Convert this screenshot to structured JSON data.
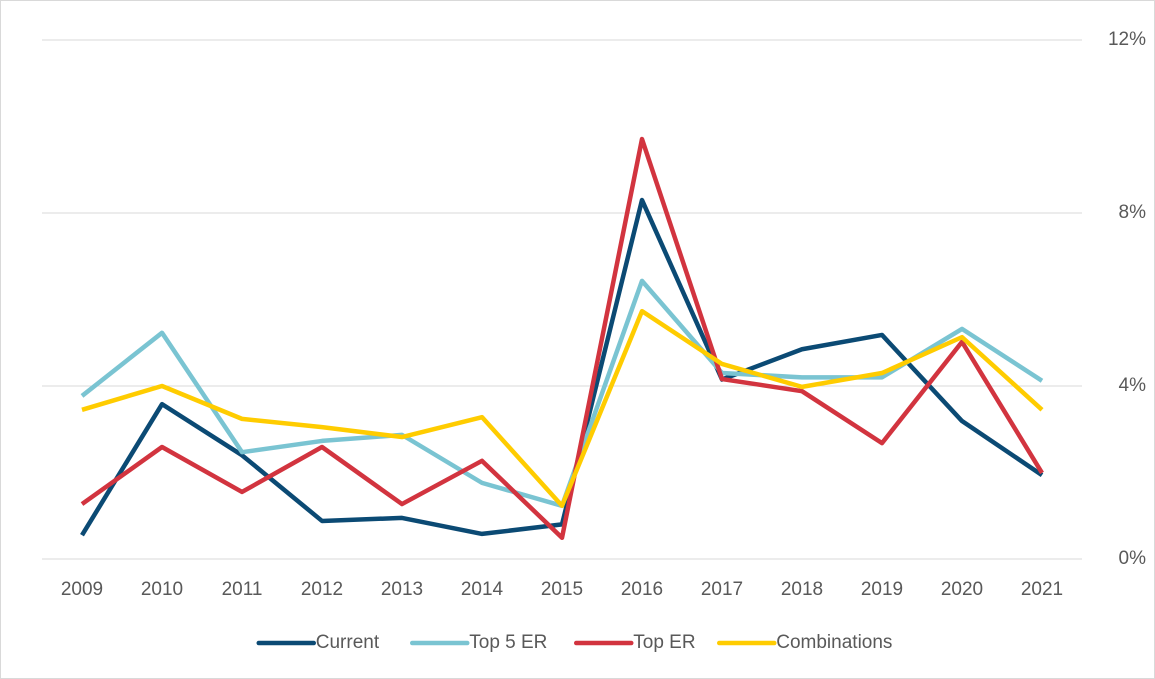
{
  "chart_data": {
    "type": "line",
    "categories": [
      "2009",
      "2010",
      "2011",
      "2012",
      "2013",
      "2014",
      "2015",
      "2016",
      "2017",
      "2018",
      "2019",
      "2020",
      "2021"
    ],
    "series": [
      {
        "name": "Current",
        "color": "#0b4a74",
        "values": [
          0.55,
          3.58,
          2.4,
          0.88,
          0.95,
          0.58,
          0.8,
          8.3,
          4.15,
          4.85,
          5.18,
          3.19,
          1.94
        ]
      },
      {
        "name": "Top 5 ER",
        "color": "#7ac4d2",
        "values": [
          3.77,
          5.23,
          2.47,
          2.73,
          2.87,
          1.76,
          1.23,
          6.43,
          4.3,
          4.2,
          4.2,
          5.32,
          4.12
        ]
      },
      {
        "name": "Top ER",
        "color": "#d2343f",
        "values": [
          1.27,
          2.59,
          1.55,
          2.59,
          1.27,
          2.27,
          0.49,
          9.71,
          4.16,
          3.88,
          2.68,
          5.02,
          1.99
        ]
      },
      {
        "name": "Combinations",
        "color": "#ffcc00",
        "values": [
          3.45,
          4.0,
          3.24,
          3.05,
          2.82,
          3.28,
          1.23,
          5.73,
          4.51,
          3.98,
          4.3,
          5.13,
          3.45
        ]
      }
    ],
    "ylim": [
      0,
      12
    ],
    "yticks": [
      {
        "value": 0,
        "label": "0%"
      },
      {
        "value": 4,
        "label": "4%"
      },
      {
        "value": 8,
        "label": "8%"
      },
      {
        "value": 12,
        "label": "12%"
      }
    ],
    "grid": true,
    "legend": "bottom"
  }
}
